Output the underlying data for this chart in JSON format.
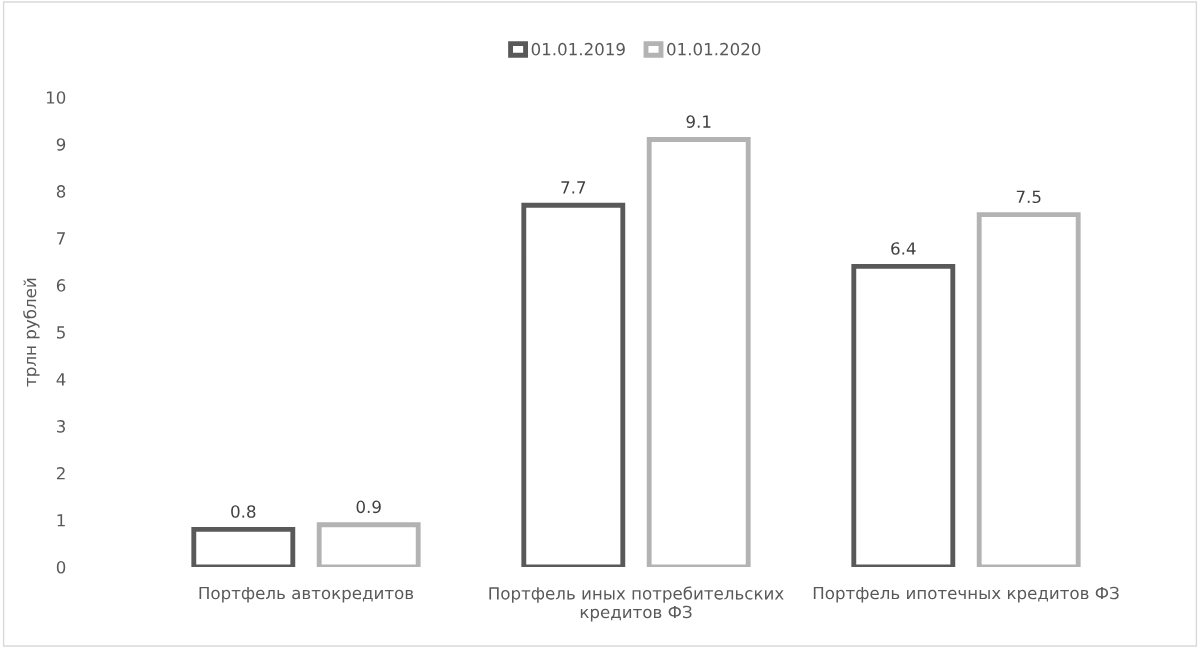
{
  "chart_data": {
    "type": "bar",
    "ylabel": "трлн рублей",
    "categories": [
      "Портфель автокредитов",
      "Портфель иных потребительских\nкредитов ФЗ",
      "Портфель ипотечных кредитов ФЗ"
    ],
    "series": [
      {
        "name": "01.01.2019",
        "color": "#595959",
        "values": [
          0.8,
          7.7,
          6.4
        ]
      },
      {
        "name": "01.01.2020",
        "color": "#b3b3b3",
        "values": [
          0.9,
          9.1,
          7.5
        ]
      }
    ],
    "ylim": [
      0,
      10
    ],
    "yticks": [
      0,
      1,
      2,
      3,
      4,
      5,
      6,
      7,
      8,
      9,
      10
    ],
    "data_labels": true,
    "grid": false,
    "legend": "top"
  }
}
